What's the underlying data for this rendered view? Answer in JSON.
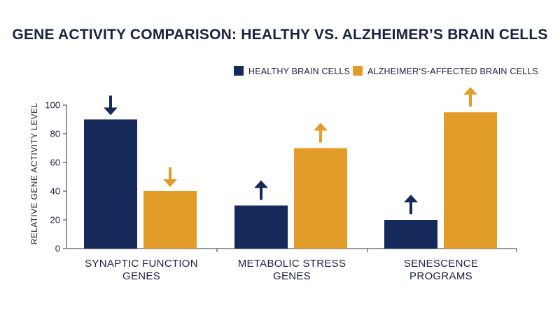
{
  "colors": {
    "healthy": "#15295a",
    "alzheimers": "#e19d27",
    "text": "#1a2240",
    "axis": "#333333"
  },
  "chart_data": {
    "type": "bar",
    "title": "GENE ACTIVITY COMPARISON: HEALTHY VS. ALZHEIMER’S BRAIN CELLS",
    "ylabel": "RELATIVE GENE ACTIVITY LEVEL",
    "xlabel": "",
    "ylim": [
      0,
      100
    ],
    "yticks": [
      "0",
      "20",
      "40",
      "60",
      "80",
      "100"
    ],
    "ytick_values": [
      0,
      20,
      40,
      60,
      80,
      100
    ],
    "grid": false,
    "legend_position": "top-right",
    "categories": [
      [
        "SYNAPTIC FUNCTION",
        "GENES"
      ],
      [
        "METABOLIC STRESS",
        "GENES"
      ],
      [
        "SENESCENCE",
        "PROGRAMS"
      ]
    ],
    "series": [
      {
        "name": "HEALTHY BRAIN CELLS",
        "color_key": "healthy",
        "values": [
          90,
          30,
          20
        ],
        "arrows": [
          "down",
          "up",
          "up"
        ]
      },
      {
        "name": "ALZHEIMER’S-AFFECTED BRAIN CELLS",
        "color_key": "alzheimers",
        "values": [
          40,
          70,
          95
        ],
        "arrows": [
          "down",
          "up",
          "up"
        ]
      }
    ]
  }
}
